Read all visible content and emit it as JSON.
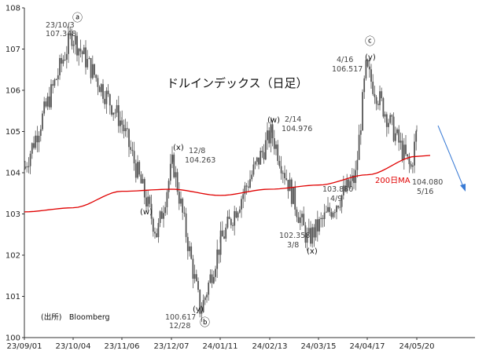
{
  "chart_data": {
    "type": "candlestick",
    "title": "ドルインデックス（日足）",
    "source": "(出所)　Bloomberg",
    "ylim": [
      100,
      108
    ],
    "yticks": [
      100,
      101,
      102,
      103,
      104,
      105,
      106,
      107,
      108
    ],
    "xticks": [
      "23/09/01",
      "23/10/04",
      "23/11/06",
      "23/12/07",
      "24/01/11",
      "24/02/13",
      "24/03/15",
      "24/04/17",
      "24/05/20"
    ],
    "ma_label": "200日MA",
    "ma_color": "#e00000",
    "candle_color": "#555555",
    "arrow_color": "#3a7bd5",
    "annotations": [
      {
        "date": "23/10/3",
        "value": "107.348"
      },
      {
        "date": "12/8",
        "value": "104.263"
      },
      {
        "date": "12/28",
        "value": "100.617"
      },
      {
        "date": "2/14",
        "value": "104.976"
      },
      {
        "date": "3/8",
        "value": "102.358"
      },
      {
        "date": "4/16",
        "value": "106.517"
      },
      {
        "date": "4/9",
        "value": "103.880"
      },
      {
        "date": "5/16",
        "value": "104.080"
      }
    ],
    "wave_labels": [
      "ⓐ",
      "(x)",
      "(w)",
      "(y)",
      "ⓑ",
      "(w)",
      "(x)",
      "ⓒ",
      "(y)"
    ],
    "key_points": [
      {
        "date": "23/09/01",
        "value": 104.1
      },
      {
        "date": "23/10/03",
        "value": 107.348
      },
      {
        "date": "23/11/06",
        "value": 105.2
      },
      {
        "date": "23/11/28",
        "value": 102.5
      },
      {
        "date": "23/12/08",
        "value": 104.263
      },
      {
        "date": "23/12/28",
        "value": 100.617
      },
      {
        "date": "24/01/11",
        "value": 102.3
      },
      {
        "date": "24/02/14",
        "value": 104.976
      },
      {
        "date": "24/03/08",
        "value": 102.358
      },
      {
        "date": "24/04/09",
        "value": 103.88
      },
      {
        "date": "24/04/16",
        "value": 106.517
      },
      {
        "date": "24/05/16",
        "value": 104.08
      },
      {
        "date": "24/05/20",
        "value": 105.0
      }
    ],
    "ma_points": [
      {
        "date": "23/09/01",
        "value": 103.05
      },
      {
        "date": "23/10/04",
        "value": 103.15
      },
      {
        "date": "23/11/06",
        "value": 103.55
      },
      {
        "date": "23/12/07",
        "value": 103.6
      },
      {
        "date": "24/01/11",
        "value": 103.45
      },
      {
        "date": "24/02/13",
        "value": 103.6
      },
      {
        "date": "24/03/15",
        "value": 103.7
      },
      {
        "date": "24/04/17",
        "value": 103.95
      },
      {
        "date": "24/05/20",
        "value": 104.4
      }
    ]
  }
}
